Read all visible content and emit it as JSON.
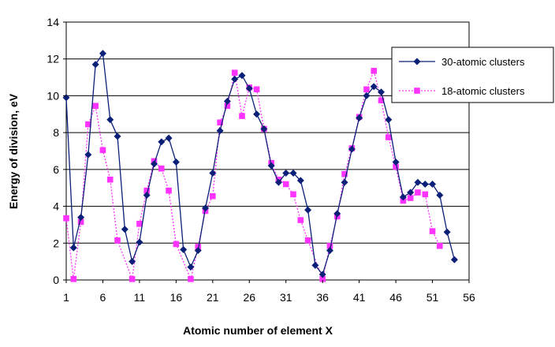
{
  "chart_data": {
    "type": "line",
    "xlabel": "Atomic number of element X",
    "ylabel": "Energy of division, eV",
    "xlim": [
      1,
      56
    ],
    "ylim": [
      0,
      14
    ],
    "x_ticks": [
      "1",
      "6",
      "11",
      "16",
      "21",
      "26",
      "31",
      "36",
      "41",
      "46",
      "51",
      "56"
    ],
    "y_ticks": [
      "0",
      "2",
      "4",
      "6",
      "8",
      "10",
      "12",
      "14"
    ],
    "grid": "horizontal",
    "legend_position": "right",
    "series": [
      {
        "name": "30-atomic clusters",
        "color": "#0a1f78",
        "marker": "diamond",
        "line": "solid",
        "points": [
          [
            1,
            9.9
          ],
          [
            2,
            1.75
          ],
          [
            3,
            3.4
          ],
          [
            4,
            6.8
          ],
          [
            5,
            11.7
          ],
          [
            6,
            12.3
          ],
          [
            7,
            8.7
          ],
          [
            8,
            7.8
          ],
          [
            9,
            2.75
          ],
          [
            10,
            1.0
          ],
          [
            11,
            2.05
          ],
          [
            12,
            4.6
          ],
          [
            13,
            6.3
          ],
          [
            14,
            7.5
          ],
          [
            15,
            7.7
          ],
          [
            16,
            6.4
          ],
          [
            17,
            1.65
          ],
          [
            18,
            0.7
          ],
          [
            19,
            1.6
          ],
          [
            20,
            3.9
          ],
          [
            21,
            5.8
          ],
          [
            22,
            8.1
          ],
          [
            23,
            9.7
          ],
          [
            24,
            10.9
          ],
          [
            25,
            11.1
          ],
          [
            26,
            10.4
          ],
          [
            27,
            9.0
          ],
          [
            28,
            8.2
          ],
          [
            29,
            6.2
          ],
          [
            30,
            5.3
          ],
          [
            31,
            5.8
          ],
          [
            32,
            5.8
          ],
          [
            33,
            5.4
          ],
          [
            34,
            3.8
          ],
          [
            35,
            0.8
          ],
          [
            36,
            0.3
          ],
          [
            37,
            1.6
          ],
          [
            38,
            3.6
          ],
          [
            39,
            5.3
          ],
          [
            40,
            7.1
          ],
          [
            41,
            8.8
          ],
          [
            42,
            10.0
          ],
          [
            43,
            10.5
          ],
          [
            44,
            10.2
          ],
          [
            45,
            8.7
          ],
          [
            46,
            6.4
          ],
          [
            47,
            4.5
          ],
          [
            48,
            4.75
          ],
          [
            49,
            5.3
          ],
          [
            50,
            5.2
          ],
          [
            51,
            5.2
          ],
          [
            52,
            4.6
          ],
          [
            53,
            2.6
          ],
          [
            54,
            1.1
          ]
        ]
      },
      {
        "name": "18-atomic clusters",
        "color": "#ff33ff",
        "marker": "square",
        "line": "dotted",
        "points": [
          [
            1,
            3.35
          ],
          [
            2,
            0.05
          ],
          [
            3,
            3.15
          ],
          [
            4,
            8.45
          ],
          [
            5,
            9.45
          ],
          [
            6,
            7.05
          ],
          [
            7,
            5.45
          ],
          [
            8,
            2.15
          ],
          [
            10,
            0.05
          ],
          [
            11,
            3.05
          ],
          [
            12,
            4.85
          ],
          [
            13,
            6.45
          ],
          [
            14,
            6.05
          ],
          [
            15,
            4.85
          ],
          [
            16,
            1.95
          ],
          [
            18,
            0.05
          ],
          [
            19,
            1.8
          ],
          [
            20,
            3.75
          ],
          [
            21,
            4.55
          ],
          [
            22,
            8.55
          ],
          [
            23,
            9.45
          ],
          [
            24,
            11.25
          ],
          [
            25,
            8.9
          ],
          [
            26,
            10.45
          ],
          [
            27,
            10.35
          ],
          [
            28,
            8.2
          ],
          [
            29,
            6.35
          ],
          [
            30,
            5.45
          ],
          [
            31,
            5.2
          ],
          [
            32,
            4.65
          ],
          [
            33,
            3.25
          ],
          [
            34,
            2.15
          ],
          [
            36,
            0.05
          ],
          [
            37,
            1.85
          ],
          [
            38,
            3.45
          ],
          [
            39,
            5.75
          ],
          [
            40,
            7.15
          ],
          [
            41,
            8.85
          ],
          [
            42,
            10.35
          ],
          [
            43,
            11.35
          ],
          [
            44,
            9.75
          ],
          [
            45,
            7.75
          ],
          [
            46,
            6.15
          ],
          [
            47,
            4.3
          ],
          [
            48,
            4.45
          ],
          [
            49,
            4.75
          ],
          [
            50,
            4.65
          ],
          [
            51,
            2.65
          ],
          [
            52,
            1.85
          ]
        ]
      }
    ]
  }
}
